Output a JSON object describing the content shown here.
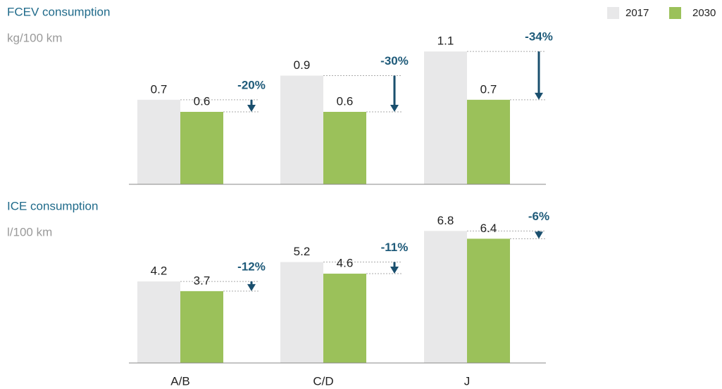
{
  "chart_data": [
    {
      "type": "bar",
      "title": "FCEV consumption",
      "subtitle": "kg/100 km",
      "series": [
        {
          "name": "2017",
          "color": "#e8e8e9",
          "values": [
            0.7,
            0.9,
            1.1
          ]
        },
        {
          "name": "2030",
          "color": "#9bc15a",
          "values": [
            0.6,
            0.6,
            0.7
          ]
        }
      ],
      "change_labels": [
        "-20%",
        "-30%",
        "-34%"
      ],
      "ylim": [
        0,
        1.2
      ]
    },
    {
      "type": "bar",
      "title": "ICE consumption",
      "subtitle": "l/100 km",
      "categories": [
        "A/B",
        "C/D",
        "J"
      ],
      "series": [
        {
          "color": "#e8e8e9",
          "values": [
            4.2,
            5.2,
            6.8
          ]
        },
        {
          "color": "#9bc15a",
          "values": [
            3.7,
            4.6,
            6.4
          ]
        }
      ],
      "change_labels": [
        "-12%",
        "-11%",
        "-6%"
      ],
      "ylim": [
        0,
        7.5
      ]
    }
  ]
}
